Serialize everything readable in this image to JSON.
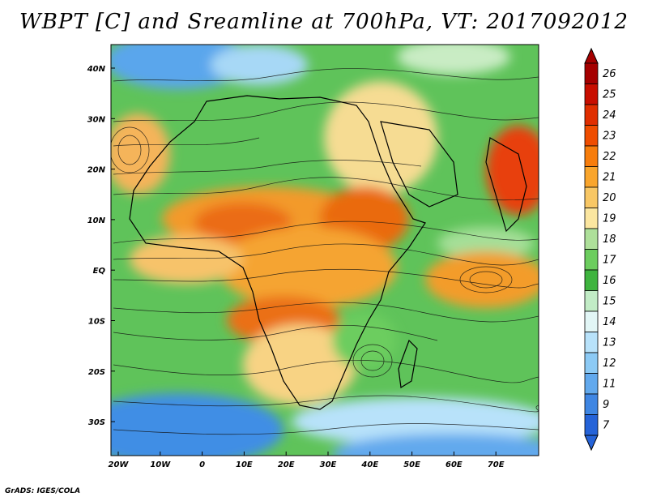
{
  "title": "WBPT [C] and Sreamline at 700hPa, VT: 2017092012",
  "lat_labels": [
    "40N",
    "30N",
    "20N",
    "10N",
    "EQ",
    "10S",
    "20S",
    "30S"
  ],
  "lon_labels": [
    "20W",
    "10W",
    "0",
    "10E",
    "20E",
    "30E",
    "40E",
    "50E",
    "60E",
    "70E"
  ],
  "colorbar": {
    "levels": [
      "26",
      "25",
      "24",
      "23",
      "22",
      "21",
      "20",
      "19",
      "18",
      "17",
      "16",
      "15",
      "14",
      "13",
      "12",
      "11",
      "9",
      "7"
    ],
    "colors": [
      "#a50000",
      "#c80e00",
      "#e02e00",
      "#ef4d00",
      "#f77d0c",
      "#f9a52c",
      "#f8c765",
      "#fbe6a0",
      "#aee09a",
      "#6ccd5e",
      "#3fb43f",
      "#c2ecc6",
      "#e2f6f6",
      "#b8e2fa",
      "#8ccaf5",
      "#62a9ed",
      "#3f86e3",
      "#2563d8"
    ]
  },
  "credit": "GrADS: IGES/COLA"
}
